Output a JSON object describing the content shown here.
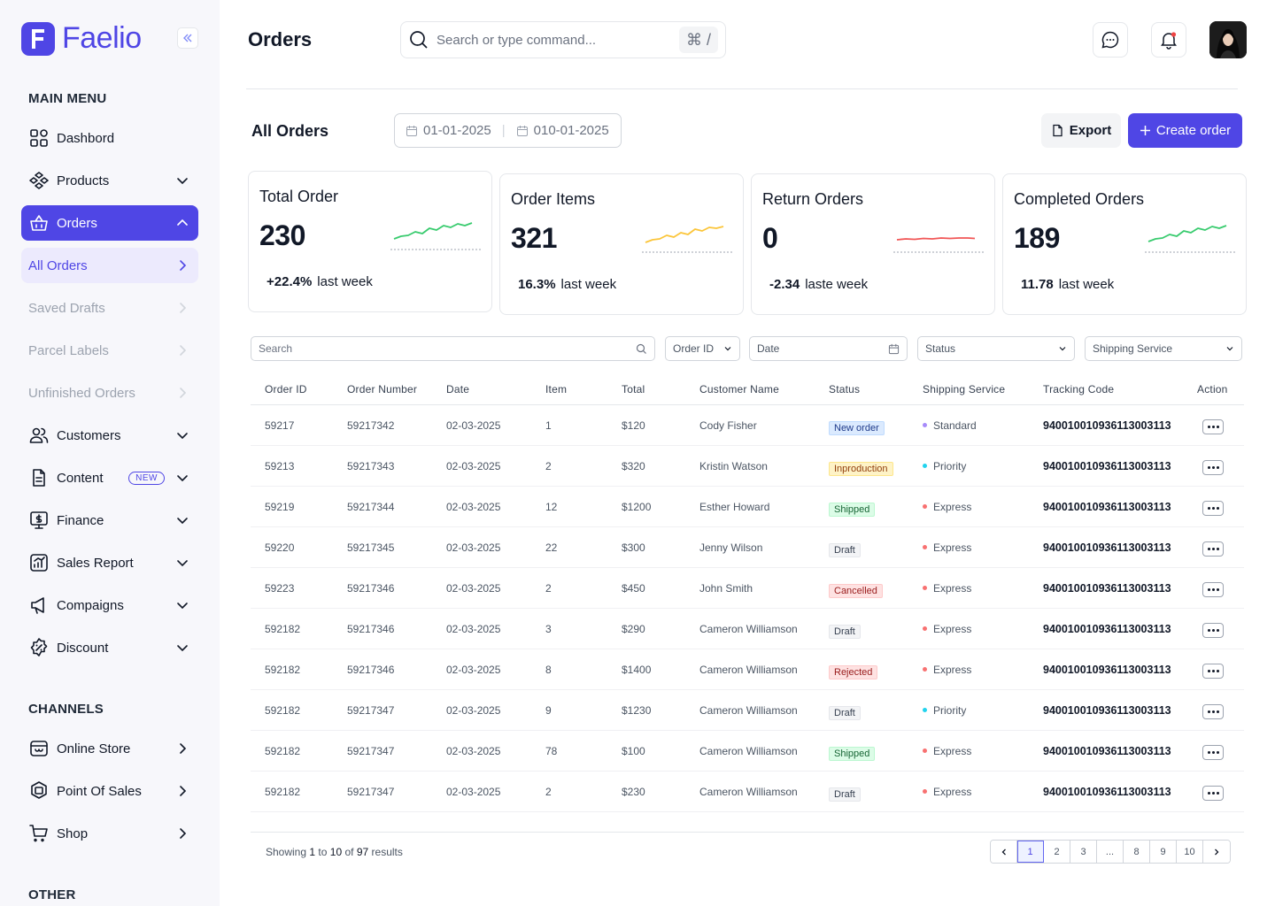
{
  "brand": {
    "name": "Faelio",
    "color": "#4f46e5"
  },
  "sidebar": {
    "main_menu_title": "MAIN MENU",
    "channels_title": "CHANNELS",
    "other_title": "OTHER",
    "main_items": [
      {
        "label": "Dashbord",
        "icon": "dashboard-icon"
      },
      {
        "label": "Products",
        "icon": "products-icon"
      },
      {
        "label": "Orders",
        "icon": "basket-icon"
      },
      {
        "label": "Customers",
        "icon": "customers-icon"
      },
      {
        "label": "Content",
        "icon": "document-icon",
        "badge": "NEW"
      },
      {
        "label": "Finance",
        "icon": "finance-icon"
      },
      {
        "label": "Sales Report",
        "icon": "report-icon"
      },
      {
        "label": "Compaigns",
        "icon": "megaphone-icon"
      },
      {
        "label": "Discount",
        "icon": "discount-icon"
      }
    ],
    "order_subitems": [
      "All Orders",
      "Saved Drafts",
      "Parcel Labels",
      "Unfinished Orders"
    ],
    "channel_items": [
      {
        "label": "Online Store",
        "icon": "store-icon"
      },
      {
        "label": "Point Of Sales",
        "icon": "pos-icon"
      },
      {
        "label": "Shop",
        "icon": "cart-icon"
      }
    ]
  },
  "header": {
    "title": "Orders",
    "search_placeholder": "Search or type command...",
    "shortcut": "⌘ /"
  },
  "toolbar": {
    "title": "All Orders",
    "date_from": "01-01-2025",
    "date_to": "010-01-2025",
    "export_label": "Export",
    "create_label": "Create order"
  },
  "stats": [
    {
      "title": "Total Order",
      "value": "230",
      "change": "+22.4%",
      "suffix": "last week",
      "trend_color": "#22c55e"
    },
    {
      "title": "Order Items",
      "value": "321",
      "change": "16.3%",
      "suffix": "last week",
      "trend_color": "#fbbf24"
    },
    {
      "title": "Return Orders",
      "value": "0",
      "change": "-2.34",
      "suffix": "laste week",
      "trend_color": "#ef4444"
    },
    {
      "title": "Completed Orders",
      "value": "189",
      "change": "11.78",
      "suffix": "last week",
      "trend_color": "#22c55e"
    }
  ],
  "filters": {
    "search_placeholder": "Search",
    "order_id": "Order ID",
    "date": "Date",
    "status": "Status",
    "shipping": "Shipping Service"
  },
  "table": {
    "columns": [
      "Order ID",
      "Order Number",
      "Date",
      "Item",
      "Total",
      "Customer Name",
      "Status",
      "Shipping Service",
      "Tracking Code",
      "Action"
    ],
    "rows": [
      {
        "id": "59217",
        "number": "59217342",
        "date": "02-03-2025",
        "item": "1",
        "total": "$120",
        "customer": "Cody Fisher",
        "status": "New order",
        "status_class": "st-new",
        "shipping": "Standard",
        "ship_color": "#a78bfa",
        "tracking": "940010010936113003113"
      },
      {
        "id": "59213",
        "number": "59217343",
        "date": "02-03-2025",
        "item": "2",
        "total": "$320",
        "customer": "Kristin Watson",
        "status": "Inproduction",
        "status_class": "st-inprod",
        "shipping": "Priority",
        "ship_color": "#22d3ee",
        "tracking": "940010010936113003113"
      },
      {
        "id": "59219",
        "number": "59217344",
        "date": "02-03-2025",
        "item": "12",
        "total": "$1200",
        "customer": "Esther Howard",
        "status": "Shipped",
        "status_class": "st-shipped",
        "shipping": "Express",
        "ship_color": "#f87171",
        "tracking": "940010010936113003113"
      },
      {
        "id": "59220",
        "number": "59217345",
        "date": "02-03-2025",
        "item": "22",
        "total": "$300",
        "customer": "Jenny Wilson",
        "status": "Draft",
        "status_class": "st-draft",
        "shipping": "Express",
        "ship_color": "#f87171",
        "tracking": "940010010936113003113"
      },
      {
        "id": "59223",
        "number": "59217346",
        "date": "02-03-2025",
        "item": "2",
        "total": "$450",
        "customer": "John Smith",
        "status": "Cancelled",
        "status_class": "st-cancelled",
        "shipping": "Express",
        "ship_color": "#f87171",
        "tracking": "940010010936113003113"
      },
      {
        "id": "592182",
        "number": "59217346",
        "date": "02-03-2025",
        "item": "3",
        "total": "$290",
        "customer": "Cameron Williamson",
        "status": "Draft",
        "status_class": "st-draft",
        "shipping": "Express",
        "ship_color": "#f87171",
        "tracking": "940010010936113003113"
      },
      {
        "id": "592182",
        "number": "59217346",
        "date": "02-03-2025",
        "item": "8",
        "total": "$1400",
        "customer": "Cameron Williamson",
        "status": "Rejected",
        "status_class": "st-rejected",
        "shipping": "Express",
        "ship_color": "#f87171",
        "tracking": "940010010936113003113"
      },
      {
        "id": "592182",
        "number": "59217347",
        "date": "02-03-2025",
        "item": "9",
        "total": "$1230",
        "customer": "Cameron Williamson",
        "status": "Draft",
        "status_class": "st-draft",
        "shipping": "Priority",
        "ship_color": "#22d3ee",
        "tracking": "940010010936113003113"
      },
      {
        "id": "592182",
        "number": "59217347",
        "date": "02-03-2025",
        "item": "78",
        "total": "$100",
        "customer": "Cameron Williamson",
        "status": "Shipped",
        "status_class": "st-shipped",
        "shipping": "Express",
        "ship_color": "#f87171",
        "tracking": "940010010936113003113"
      },
      {
        "id": "592182",
        "number": "59217347",
        "date": "02-03-2025",
        "item": "2",
        "total": "$230",
        "customer": "Cameron Williamson",
        "status": "Draft",
        "status_class": "st-draft",
        "shipping": "Express",
        "ship_color": "#f87171",
        "tracking": "940010010936113003113"
      }
    ]
  },
  "footer": {
    "showing_prefix": "Showing",
    "from": "1",
    "to_word": "to",
    "to": "10",
    "of_word": "of",
    "total": "97",
    "results_word": "results",
    "pages": [
      "1",
      "2",
      "3",
      "...",
      "8",
      "9",
      "10"
    ],
    "current_page": "1"
  }
}
